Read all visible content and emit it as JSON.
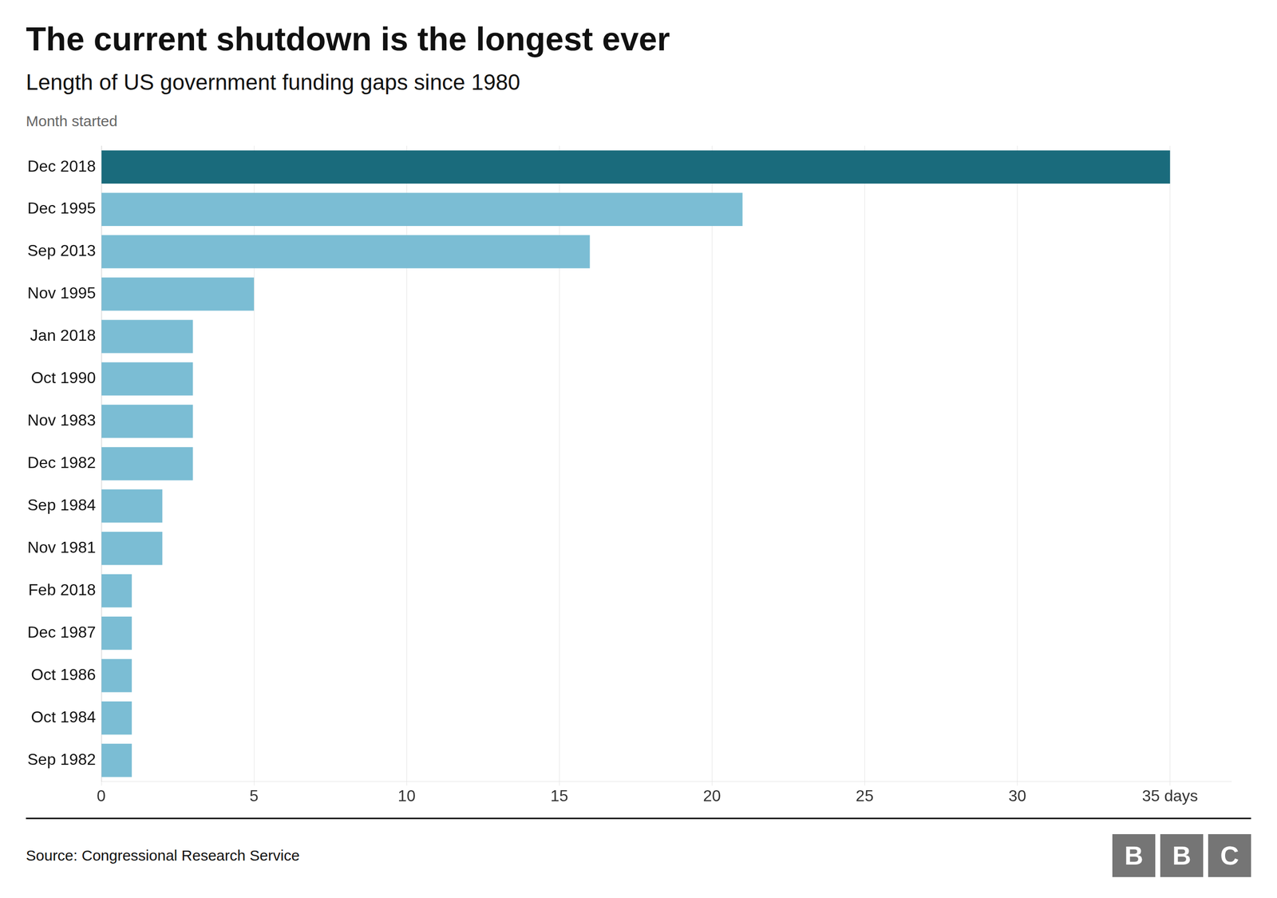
{
  "chart_data": {
    "type": "bar",
    "orientation": "horizontal",
    "title": "The current shutdown is the longest ever",
    "subtitle": "Length of US government funding gaps since 1980",
    "ylabel": "Month started",
    "source": "Source: Congressional Research Service",
    "annotations": [
      "BBC"
    ],
    "categories": [
      "Dec 2018",
      "Dec 1995",
      "Sep 2013",
      "Nov 1995",
      "Jan 2018",
      "Oct 1990",
      "Nov 1983",
      "Dec 1982",
      "Sep 1984",
      "Nov 1981",
      "Feb 2018",
      "Dec 1987",
      "Oct 1986",
      "Oct 1984",
      "Sep 1982"
    ],
    "values": [
      35,
      21,
      16,
      5,
      3,
      3,
      3,
      3,
      2,
      2,
      1,
      1,
      1,
      1,
      1
    ],
    "colors": [
      "#1a6b7c",
      "#7bbdd4",
      "#7bbdd4",
      "#7bbdd4",
      "#7bbdd4",
      "#7bbdd4",
      "#7bbdd4",
      "#7bbdd4",
      "#7bbdd4",
      "#7bbdd4",
      "#7bbdd4",
      "#7bbdd4",
      "#7bbdd4",
      "#7bbdd4",
      "#7bbdd4"
    ],
    "xlim": [
      0,
      37
    ],
    "xticks": [
      0,
      5,
      10,
      15,
      20,
      25,
      30,
      {
        "value": 35,
        "label": "35 days"
      }
    ],
    "grid": true
  }
}
